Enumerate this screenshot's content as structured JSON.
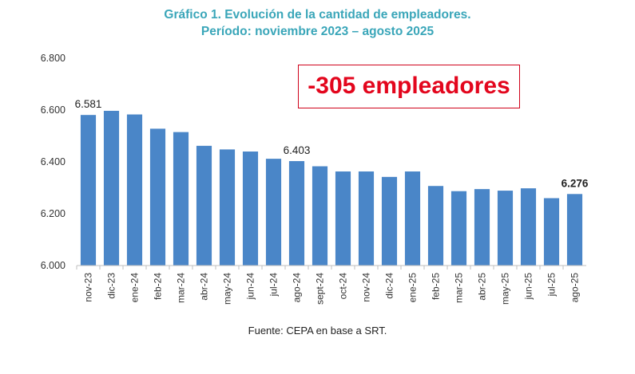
{
  "title": "Gráfico 1. Evolución de la cantidad de empleadores.",
  "subtitle": "Período: noviembre 2023 – agosto 2025",
  "callout": "-305 empleadores",
  "source": "Fuente: CEPA en base a SRT.",
  "colors": {
    "bar": "#4a86c8",
    "title": "#3aa6b9",
    "callout": "#e3061d"
  },
  "chart_data": {
    "type": "bar",
    "categories": [
      "nov-23",
      "dic-23",
      "ene-24",
      "feb-24",
      "mar-24",
      "abr-24",
      "may-24",
      "jun-24",
      "jul-24",
      "ago-24",
      "sept-24",
      "oct-24",
      "nov-24",
      "dic-24",
      "ene-25",
      "feb-25",
      "mar-25",
      "abr-25",
      "may-25",
      "jun-25",
      "jul-25",
      "ago-25"
    ],
    "values": [
      6581,
      6597,
      6583,
      6528,
      6515,
      6462,
      6448,
      6440,
      6412,
      6403,
      6383,
      6363,
      6363,
      6342,
      6363,
      6307,
      6287,
      6295,
      6289,
      6298,
      6260,
      6276
    ],
    "ylim": [
      6000,
      6800
    ],
    "yticks": [
      "6.000",
      "6.200",
      "6.400",
      "6.600",
      "6.800"
    ],
    "grid": false,
    "data_labels": [
      {
        "index": 0,
        "text": "6.581",
        "bold": false
      },
      {
        "index": 9,
        "text": "6.403",
        "bold": false
      },
      {
        "index": 21,
        "text": "6.276",
        "bold": true
      }
    ]
  }
}
